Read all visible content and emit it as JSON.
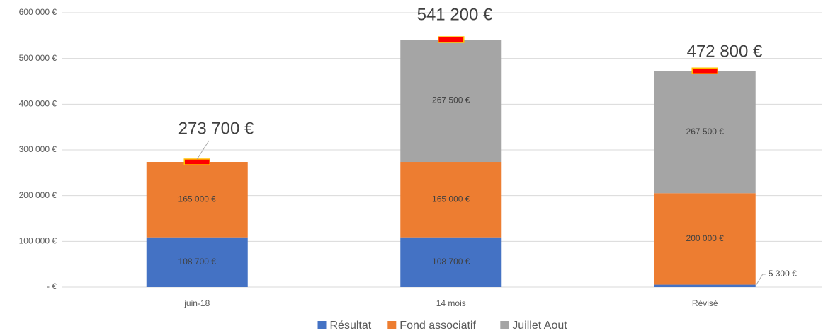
{
  "chart_data": {
    "type": "stacked_bar",
    "categories": [
      "juin-18",
      "14 mois",
      "Révisé"
    ],
    "series": [
      {
        "name": "Résultat",
        "color": "#4472c4",
        "values": [
          108700,
          108700,
          5300
        ],
        "value_labels": [
          "108 700 €",
          "108 700 €",
          "5 300 €"
        ]
      },
      {
        "name": "Fond associatif",
        "color": "#ed7d31",
        "values": [
          165000,
          165000,
          200000
        ],
        "value_labels": [
          "165 000 €",
          "165 000 €",
          "200 000 €"
        ]
      },
      {
        "name": "Juillet Aout",
        "color": "#a5a5a5",
        "values": [
          null,
          267500,
          267500
        ],
        "value_labels": [
          null,
          "267 500 €",
          "267 500 €"
        ]
      }
    ],
    "totals": {
      "color": "#ff0000",
      "values": [
        273700,
        541200,
        472800
      ],
      "value_labels": [
        "273 700 €",
        "541 200 €",
        "472 800 €"
      ]
    },
    "ylim": [
      0,
      600000
    ],
    "yticks": [
      {
        "value": 0,
        "label": "-  €"
      },
      {
        "value": 100000,
        "label": "100 000 €"
      },
      {
        "value": 200000,
        "label": "200 000 €"
      },
      {
        "value": 300000,
        "label": "300 000 €"
      },
      {
        "value": 400000,
        "label": "400 000 €"
      },
      {
        "value": 500000,
        "label": "500 000 €"
      },
      {
        "value": 600000,
        "label": "600 000 €"
      }
    ],
    "grid": true,
    "legend": "bottom"
  }
}
